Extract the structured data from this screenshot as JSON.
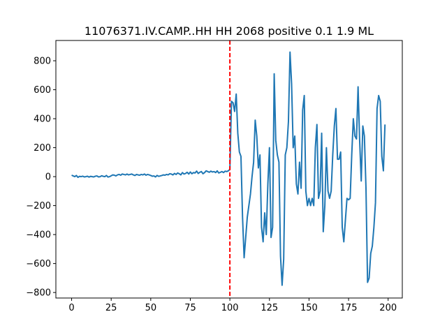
{
  "chart_data": {
    "type": "line",
    "title": "11076371.IV.CAMP..HH HH 2068 positive 0.1 1.9 ML",
    "xlabel": "",
    "ylabel": "",
    "xlim": [
      -9.95,
      208.95
    ],
    "ylim": [
      -838,
      940
    ],
    "xticks": [
      0,
      25,
      50,
      75,
      100,
      125,
      150,
      175,
      200
    ],
    "yticks": [
      -800,
      -600,
      -400,
      -200,
      0,
      200,
      400,
      600,
      800
    ],
    "grid": false,
    "series": [
      {
        "color": "#1f77b4",
        "x_start": 0,
        "x_step": 1,
        "values": [
          10,
          5,
          0,
          8,
          -5,
          2,
          0,
          3,
          -2,
          0,
          3,
          -3,
          2,
          0,
          -2,
          3,
          5,
          -2,
          0,
          6,
          2,
          0,
          8,
          -3,
          0,
          6,
          12,
          10,
          5,
          12,
          15,
          10,
          18,
          15,
          12,
          18,
          12,
          15,
          18,
          12,
          8,
          15,
          12,
          10,
          15,
          12,
          18,
          10,
          15,
          12,
          8,
          3,
          5,
          -2,
          8,
          2,
          5,
          8,
          12,
          10,
          15,
          12,
          20,
          18,
          12,
          22,
          15,
          25,
          20,
          12,
          28,
          18,
          22,
          30,
          18,
          32,
          20,
          28,
          25,
          38,
          22,
          30,
          35,
          20,
          28,
          40,
          35,
          30,
          38,
          32,
          35,
          28,
          40,
          25,
          30,
          35,
          28,
          38,
          35,
          40,
          50,
          520,
          510,
          450,
          570,
          300,
          170,
          140,
          -280,
          -560,
          -420,
          -280,
          -200,
          -120,
          0,
          100,
          390,
          280,
          60,
          150,
          -350,
          -450,
          -250,
          -400,
          -50,
          200,
          -420,
          -350,
          710,
          250,
          150,
          100,
          -550,
          -750,
          -570,
          150,
          200,
          380,
          860,
          640,
          200,
          280,
          -50,
          -120,
          100,
          -80,
          460,
          560,
          -100,
          -200,
          -150,
          -200,
          -150,
          -200,
          200,
          360,
          -150,
          -100,
          300,
          -380,
          -200,
          200,
          -100,
          -150,
          -100,
          150,
          350,
          470,
          120,
          120,
          170,
          -350,
          -450,
          -300,
          -150,
          -160,
          -150,
          150,
          400,
          280,
          260,
          620,
          250,
          -30,
          350,
          280,
          -80,
          -730,
          -700,
          -530,
          -480,
          -350,
          -180,
          470,
          560,
          520,
          140,
          40,
          360
        ]
      }
    ],
    "vline": {
      "x": 100,
      "color": "#ff0000",
      "style": "dashed"
    }
  }
}
